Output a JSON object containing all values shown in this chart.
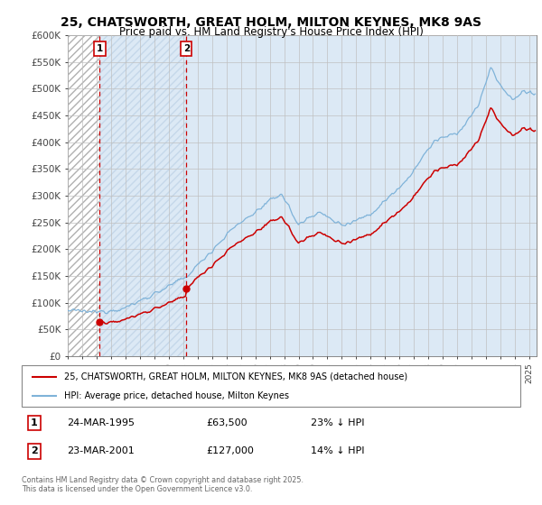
{
  "title": "25, CHATSWORTH, GREAT HOLM, MILTON KEYNES, MK8 9AS",
  "subtitle": "Price paid vs. HM Land Registry's House Price Index (HPI)",
  "ylabel_ticks": [
    "£0",
    "£50K",
    "£100K",
    "£150K",
    "£200K",
    "£250K",
    "£300K",
    "£350K",
    "£400K",
    "£450K",
    "£500K",
    "£550K",
    "£600K"
  ],
  "ylim": [
    0,
    600000
  ],
  "xlim_start": 1993.0,
  "xlim_end": 2025.5,
  "sale1_date": 1995.22,
  "sale1_price": 63500,
  "sale1_label": "1",
  "sale2_date": 2001.22,
  "sale2_price": 127000,
  "sale2_label": "2",
  "red_line_color": "#cc0000",
  "blue_line_color": "#7fb3d9",
  "bg_color": "#dce9f5",
  "grid_color": "#c0c0c0",
  "legend1_text": "25, CHATSWORTH, GREAT HOLM, MILTON KEYNES, MK8 9AS (detached house)",
  "legend2_text": "HPI: Average price, detached house, Milton Keynes",
  "note1_label": "1",
  "note1_date": "24-MAR-1995",
  "note1_price": "£63,500",
  "note1_hpi": "23% ↓ HPI",
  "note2_label": "2",
  "note2_date": "23-MAR-2001",
  "note2_price": "£127,000",
  "note2_hpi": "14% ↓ HPI",
  "footer": "Contains HM Land Registry data © Crown copyright and database right 2025.\nThis data is licensed under the Open Government Licence v3.0."
}
